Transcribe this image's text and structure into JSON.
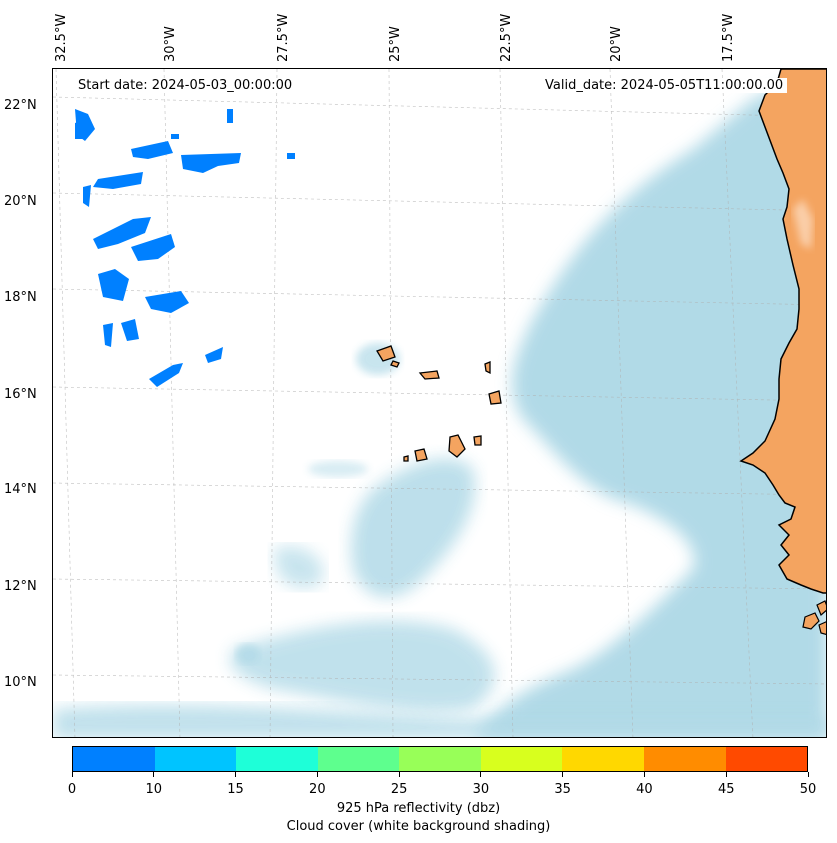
{
  "map": {
    "lon_labels": [
      "32.5°W",
      "30°W",
      "27.5°W",
      "25°W",
      "22.5°W",
      "20°W",
      "17.5°W"
    ],
    "lat_labels": [
      "22°N",
      "20°N",
      "18°N",
      "16°N",
      "14°N",
      "12°N",
      "10°N"
    ],
    "start_date": "Start date: 2024-05-03_00:00:00",
    "valid_date": "Valid_date: 2024-05-05T11:00:00.00",
    "colors": {
      "land": "#f4a460",
      "cloud": "#add8e6",
      "reflectivity_low": "#0080ff",
      "coastline": "#000000",
      "grid": "#b0b0b0"
    }
  },
  "colorbar": {
    "ticks": [
      "0",
      "10",
      "15",
      "20",
      "25",
      "30",
      "35",
      "40",
      "45",
      "50"
    ],
    "colors": [
      "#0080ff",
      "#00c4ff",
      "#1effd8",
      "#5eff8e",
      "#98ff58",
      "#d8ff1e",
      "#ffd800",
      "#ff8c00",
      "#ff4a00"
    ],
    "label": "925 hPa reflectivity (dbz)",
    "sublabel": "Cloud cover (white background shading)"
  }
}
